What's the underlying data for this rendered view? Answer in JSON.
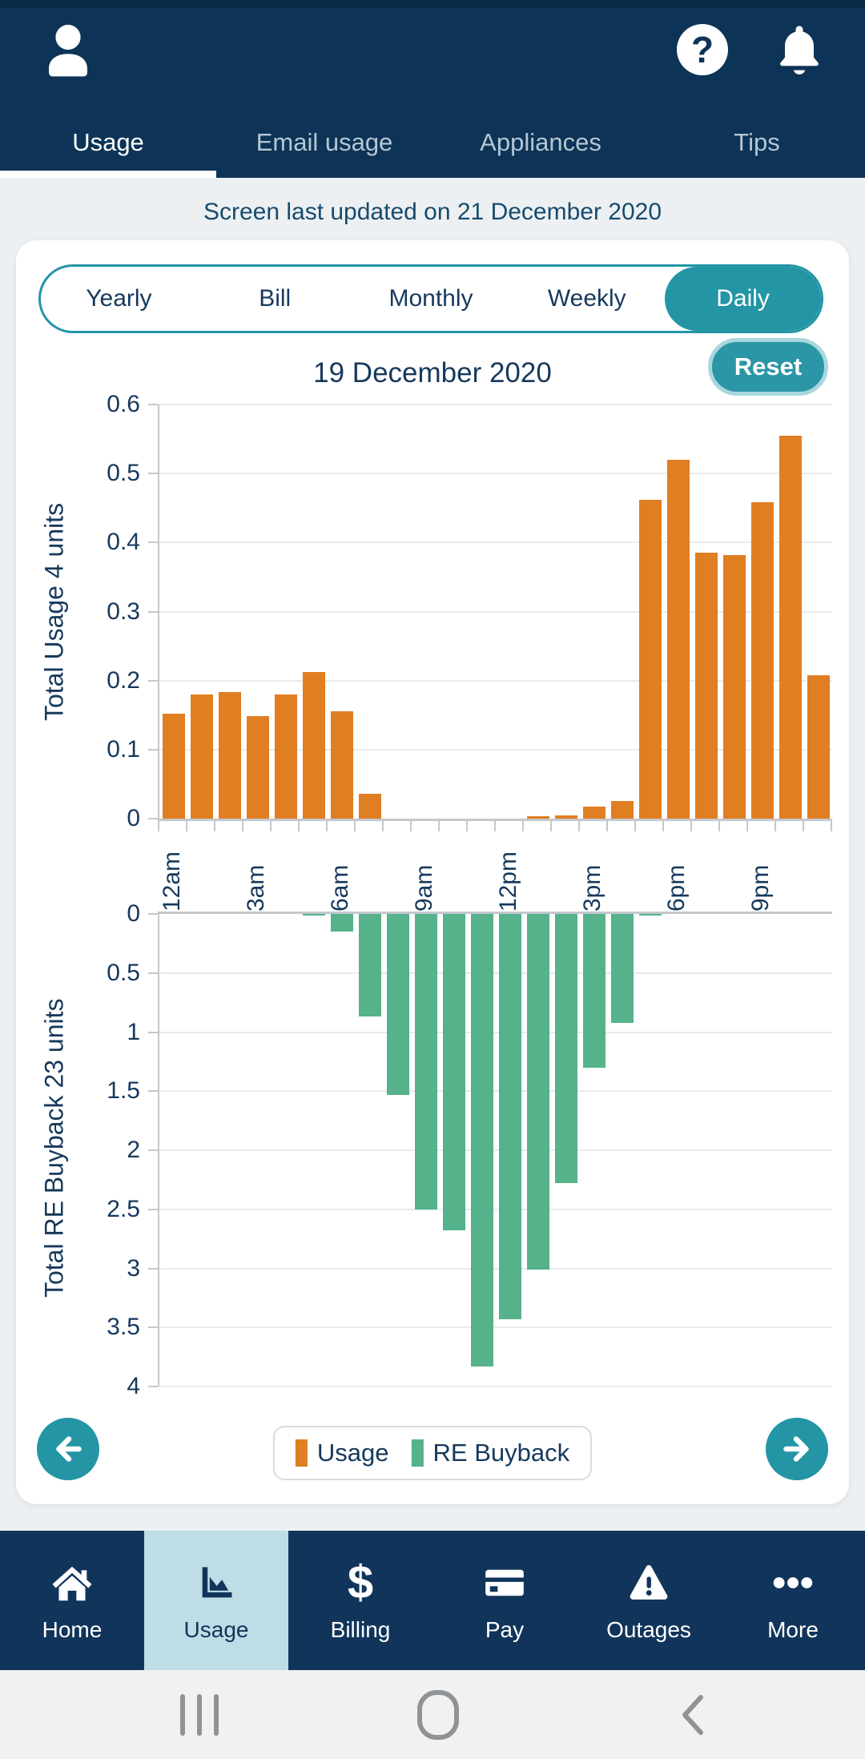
{
  "header": {
    "tabs": [
      {
        "label": "Usage",
        "active": true
      },
      {
        "label": "Email usage",
        "active": false
      },
      {
        "label": "Appliances",
        "active": false
      },
      {
        "label": "Tips",
        "active": false
      }
    ],
    "icons": [
      "person-icon",
      "question-mark-help-icon",
      "bell-icon"
    ]
  },
  "status_line": "Screen last updated on 21 December 2020",
  "period_selector": {
    "options": [
      "Yearly",
      "Bill",
      "Monthly",
      "Weekly",
      "Daily"
    ],
    "selected": "Daily"
  },
  "reset_button_label": "Reset",
  "chart_data": [
    {
      "type": "bar",
      "title": "19 December 2020",
      "series_name": "Usage",
      "ylabel": "Total Usage 4 units",
      "categories": [
        "12am",
        "1am",
        "2am",
        "3am",
        "4am",
        "5am",
        "6am",
        "7am",
        "8am",
        "9am",
        "10am",
        "11am",
        "12pm",
        "1pm",
        "2pm",
        "3pm",
        "4pm",
        "5pm",
        "6pm",
        "7pm",
        "8pm",
        "9pm",
        "10pm",
        "11pm"
      ],
      "values": [
        0.152,
        0.18,
        0.183,
        0.149,
        0.18,
        0.212,
        0.155,
        0.036,
        0,
        0,
        0,
        0,
        0,
        0.003,
        0.005,
        0.018,
        0.025,
        0.462,
        0.52,
        0.385,
        0.382,
        0.458,
        0.555,
        0.208
      ],
      "ylim": [
        0,
        0.6
      ],
      "ytick_step": 0.1,
      "inverted": false,
      "grid": true,
      "bar_color": "#e07e22",
      "x_tick_labels": [
        "12am",
        "3am",
        "6am",
        "9am",
        "12pm",
        "3pm",
        "6pm",
        "9pm"
      ]
    },
    {
      "type": "bar",
      "series_name": "RE Buyback",
      "ylabel": "Total RE Buyback 23 units",
      "categories": [
        "12am",
        "1am",
        "2am",
        "3am",
        "4am",
        "5am",
        "6am",
        "7am",
        "8am",
        "9am",
        "10am",
        "11am",
        "12pm",
        "1pm",
        "2pm",
        "3pm",
        "4pm",
        "5pm",
        "6pm",
        "7pm",
        "8pm",
        "9pm",
        "10pm",
        "11pm"
      ],
      "values": [
        0,
        0,
        0,
        0,
        0,
        0.01,
        0.15,
        0.87,
        1.53,
        2.5,
        2.68,
        3.83,
        3.43,
        3.01,
        2.28,
        1.3,
        0.92,
        0.01,
        0,
        0,
        0,
        0,
        0,
        0
      ],
      "ylim": [
        0,
        4
      ],
      "ytick_step": 0.5,
      "inverted": true,
      "grid": true,
      "bar_color": "#55b28a"
    }
  ],
  "legend": [
    {
      "label": "Usage",
      "color": "#e07e22"
    },
    {
      "label": "RE Buyback",
      "color": "#55b28a"
    }
  ],
  "pagination": {
    "prev": "left-arrow",
    "next": "right-arrow"
  },
  "bottom_nav": [
    {
      "label": "Home",
      "icon": "home-icon",
      "active": false
    },
    {
      "label": "Usage",
      "icon": "usage-chart-icon",
      "active": true
    },
    {
      "label": "Billing",
      "icon": "dollar-icon",
      "active": false
    },
    {
      "label": "Pay",
      "icon": "credit-card-icon",
      "active": false
    },
    {
      "label": "Outages",
      "icon": "warning-triangle-icon",
      "active": false
    },
    {
      "label": "More",
      "icon": "more-dots-icon",
      "active": false
    }
  ],
  "android_nav": {
    "buttons": [
      "recents",
      "home",
      "back"
    ]
  },
  "colors": {
    "header_navy": "#0d3456",
    "nav_navy": "#11355a",
    "accent_teal": "#2395a5",
    "active_tile_blue": "#bedde6",
    "usage_orange": "#e07e22",
    "buyback_green": "#55b28a",
    "text_navy": "#16395c"
  }
}
